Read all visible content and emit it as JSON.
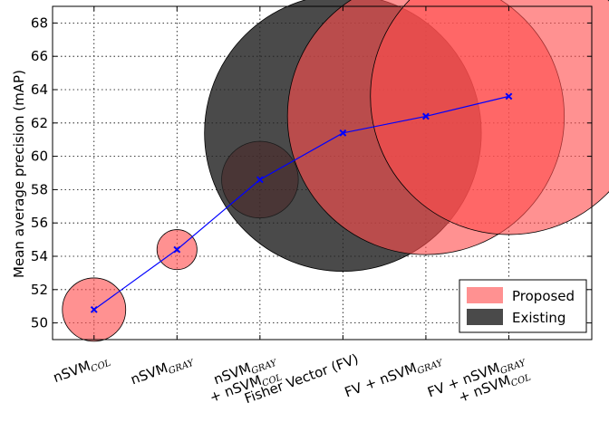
{
  "chart_data": {
    "type": "scatter",
    "ylabel": "Mean average precision (mAP)",
    "ylim": [
      49,
      69
    ],
    "yticks": [
      50,
      52,
      54,
      56,
      58,
      60,
      62,
      64,
      66,
      68
    ],
    "grid": true,
    "categories": [
      {
        "lines": [
          {
            "main": "nSVM",
            "sub": "COL"
          }
        ]
      },
      {
        "lines": [
          {
            "main": "nSVM",
            "sub": "GRAY"
          }
        ]
      },
      {
        "lines": [
          {
            "main": "nSVM",
            "sub": "GRAY"
          },
          {
            "main": "+ nSVM",
            "sub": "COL"
          }
        ]
      },
      {
        "lines": [
          {
            "main": "Fisher Vector (FV)",
            "sub": ""
          }
        ]
      },
      {
        "lines": [
          {
            "main": "FV + nSVM",
            "sub": "GRAY"
          }
        ]
      },
      {
        "lines": [
          {
            "main": "FV + nSVM",
            "sub": "GRAY"
          },
          {
            "main": "+ nSVM",
            "sub": "COL"
          }
        ]
      }
    ],
    "values": [
      50.8,
      54.4,
      58.6,
      61.4,
      62.4,
      63.6
    ],
    "bubble_size": [
      1.9,
      1.2,
      2.3,
      8.3,
      8.3,
      8.3
    ],
    "groups": [
      "Proposed",
      "Proposed",
      "Proposed",
      "Existing",
      "Proposed",
      "Proposed"
    ],
    "legend": {
      "position": "bottom-right",
      "entries": [
        {
          "label": "Proposed",
          "color": "#ff4d4d"
        },
        {
          "label": "Existing",
          "color": "#222222"
        }
      ]
    },
    "line_color": "#0000ff"
  }
}
